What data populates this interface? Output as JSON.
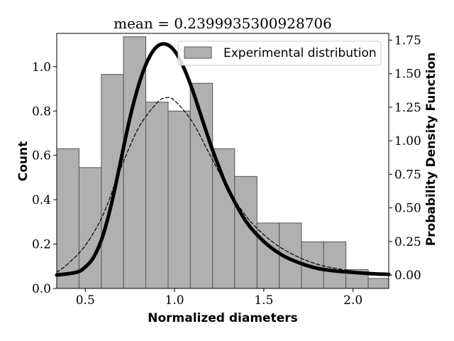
{
  "chart_data": {
    "type": "bar",
    "title": "mean = 0.2399935300928706",
    "xlabel": "Normalized diameters",
    "ylabel": "Count",
    "y2label": "Probability Density Function",
    "xlim": [
      0.34,
      2.2
    ],
    "ylim": [
      0.0,
      1.15
    ],
    "y2lim": [
      -0.1,
      1.8
    ],
    "grid": false,
    "legend_position": "top-right",
    "x_ticks": [
      0.5,
      1.0,
      1.5,
      2.0
    ],
    "x_tick_labels": [
      "0.5",
      "1.0",
      "1.5",
      "2.0"
    ],
    "y_ticks": [
      0.0,
      0.2,
      0.4,
      0.6,
      0.8,
      1.0
    ],
    "y_tick_labels": [
      "0.0",
      "0.2",
      "0.4",
      "0.6",
      "0.8",
      "1.0"
    ],
    "y2_ticks": [
      0.0,
      0.25,
      0.5,
      0.75,
      1.0,
      1.25,
      1.5,
      1.75
    ],
    "y2_tick_labels": [
      "0.00",
      "0.25",
      "0.50",
      "0.75",
      "1.00",
      "1.25",
      "1.50",
      "1.75"
    ],
    "series": [
      {
        "name": "Experimental distribution",
        "kind": "histogram",
        "bin_edges": [
          0.34,
          0.465,
          0.59,
          0.714,
          0.839,
          0.964,
          1.088,
          1.213,
          1.337,
          1.462,
          1.587,
          1.711,
          1.836,
          1.96,
          2.085,
          2.2
        ],
        "values": [
          0.63,
          0.545,
          0.965,
          1.135,
          0.84,
          0.8,
          0.925,
          0.63,
          0.505,
          0.295,
          0.295,
          0.21,
          0.21,
          0.085,
          0.045
        ],
        "color": "#b0b0b0",
        "edge_color": "#555555"
      },
      {
        "kind": "line",
        "axis": "right",
        "style": "solid-thick",
        "color": "#000000",
        "x": [
          0.34,
          0.45,
          0.5,
          0.55,
          0.6,
          0.65,
          0.7,
          0.75,
          0.8,
          0.85,
          0.9,
          0.95,
          1.0,
          1.05,
          1.1,
          1.15,
          1.2,
          1.25,
          1.3,
          1.4,
          1.5,
          1.6,
          1.7,
          1.8,
          1.9,
          2.0,
          2.1,
          2.2
        ],
        "y": [
          0.0,
          0.02,
          0.06,
          0.14,
          0.3,
          0.55,
          0.86,
          1.17,
          1.42,
          1.6,
          1.7,
          1.72,
          1.67,
          1.55,
          1.38,
          1.18,
          0.98,
          0.8,
          0.64,
          0.4,
          0.25,
          0.15,
          0.09,
          0.05,
          0.03,
          0.02,
          0.01,
          0.005
        ]
      },
      {
        "kind": "line",
        "axis": "right",
        "style": "dashed-thin",
        "color": "#000000",
        "x": [
          0.34,
          0.4,
          0.5,
          0.6,
          0.7,
          0.8,
          0.9,
          0.95,
          1.0,
          1.1,
          1.2,
          1.3,
          1.4,
          1.5,
          1.6,
          1.7,
          1.8,
          1.9,
          2.0,
          2.1,
          2.2
        ],
        "y": [
          0.02,
          0.08,
          0.22,
          0.45,
          0.8,
          1.1,
          1.28,
          1.32,
          1.3,
          1.14,
          0.89,
          0.64,
          0.44,
          0.3,
          0.2,
          0.13,
          0.08,
          0.05,
          0.03,
          0.02,
          0.01
        ]
      }
    ]
  }
}
